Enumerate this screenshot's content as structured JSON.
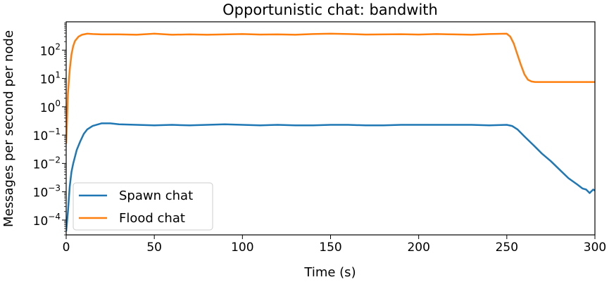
{
  "chart_data": {
    "type": "line",
    "title": "Opportunistic chat: bandwith",
    "xlabel": "Time (s)",
    "ylabel": "Messages per second per node",
    "xlim": [
      0,
      300
    ],
    "ylim": [
      3e-05,
      1000
    ],
    "yscale": "log",
    "grid": false,
    "legend_position": "lower-left",
    "x_ticks": [
      0,
      50,
      100,
      150,
      200,
      250,
      300
    ],
    "x_tick_labels": [
      "0",
      "50",
      "100",
      "150",
      "200",
      "250",
      "300"
    ],
    "y_ticks": [
      0.0001,
      0.001,
      0.01,
      0.1,
      1,
      10,
      100
    ],
    "y_tick_labels": [
      {
        "base": "10",
        "exp": "−4"
      },
      {
        "base": "10",
        "exp": "−3"
      },
      {
        "base": "10",
        "exp": "−2"
      },
      {
        "base": "10",
        "exp": "−1"
      },
      {
        "base": "10",
        "exp": "0"
      },
      {
        "base": "10",
        "exp": "1"
      },
      {
        "base": "10",
        "exp": "2"
      }
    ],
    "series": [
      {
        "name": "Spawn chat",
        "color": "#1f77b4",
        "x": [
          0,
          1,
          2,
          3,
          4,
          6,
          8,
          10,
          12,
          15,
          20,
          25,
          30,
          40,
          50,
          60,
          70,
          80,
          90,
          100,
          110,
          120,
          130,
          140,
          150,
          160,
          170,
          180,
          190,
          200,
          210,
          220,
          230,
          240,
          250,
          253,
          256,
          260,
          265,
          270,
          275,
          280,
          285,
          290,
          293,
          295,
          297,
          299,
          300
        ],
        "y": [
          4e-05,
          0.0002,
          0.0015,
          0.005,
          0.01,
          0.03,
          0.06,
          0.11,
          0.16,
          0.21,
          0.26,
          0.26,
          0.24,
          0.23,
          0.22,
          0.23,
          0.22,
          0.23,
          0.24,
          0.23,
          0.22,
          0.23,
          0.22,
          0.22,
          0.23,
          0.23,
          0.22,
          0.22,
          0.23,
          0.23,
          0.23,
          0.23,
          0.23,
          0.22,
          0.23,
          0.21,
          0.16,
          0.09,
          0.045,
          0.022,
          0.012,
          0.006,
          0.003,
          0.0018,
          0.0013,
          0.0012,
          0.0009,
          0.0012,
          0.0011
        ]
      },
      {
        "name": "Flood chat",
        "color": "#ff7f0e",
        "x": [
          0,
          0.5,
          1,
          2,
          3,
          4,
          5,
          7,
          9,
          12,
          15,
          20,
          30,
          40,
          50,
          60,
          70,
          80,
          90,
          100,
          110,
          120,
          130,
          140,
          150,
          160,
          170,
          180,
          190,
          200,
          210,
          220,
          230,
          240,
          250,
          252,
          254,
          256,
          258,
          260,
          262,
          264,
          266,
          270,
          280,
          290,
          300
        ],
        "y": [
          0.05,
          0.4,
          3,
          20,
          70,
          140,
          210,
          300,
          350,
          380,
          370,
          360,
          360,
          350,
          380,
          350,
          360,
          350,
          360,
          370,
          355,
          360,
          350,
          370,
          380,
          370,
          355,
          360,
          365,
          355,
          370,
          360,
          350,
          370,
          380,
          300,
          170,
          70,
          30,
          14,
          9,
          7.8,
          7.5,
          7.5,
          7.5,
          7.5,
          7.5
        ]
      }
    ]
  }
}
